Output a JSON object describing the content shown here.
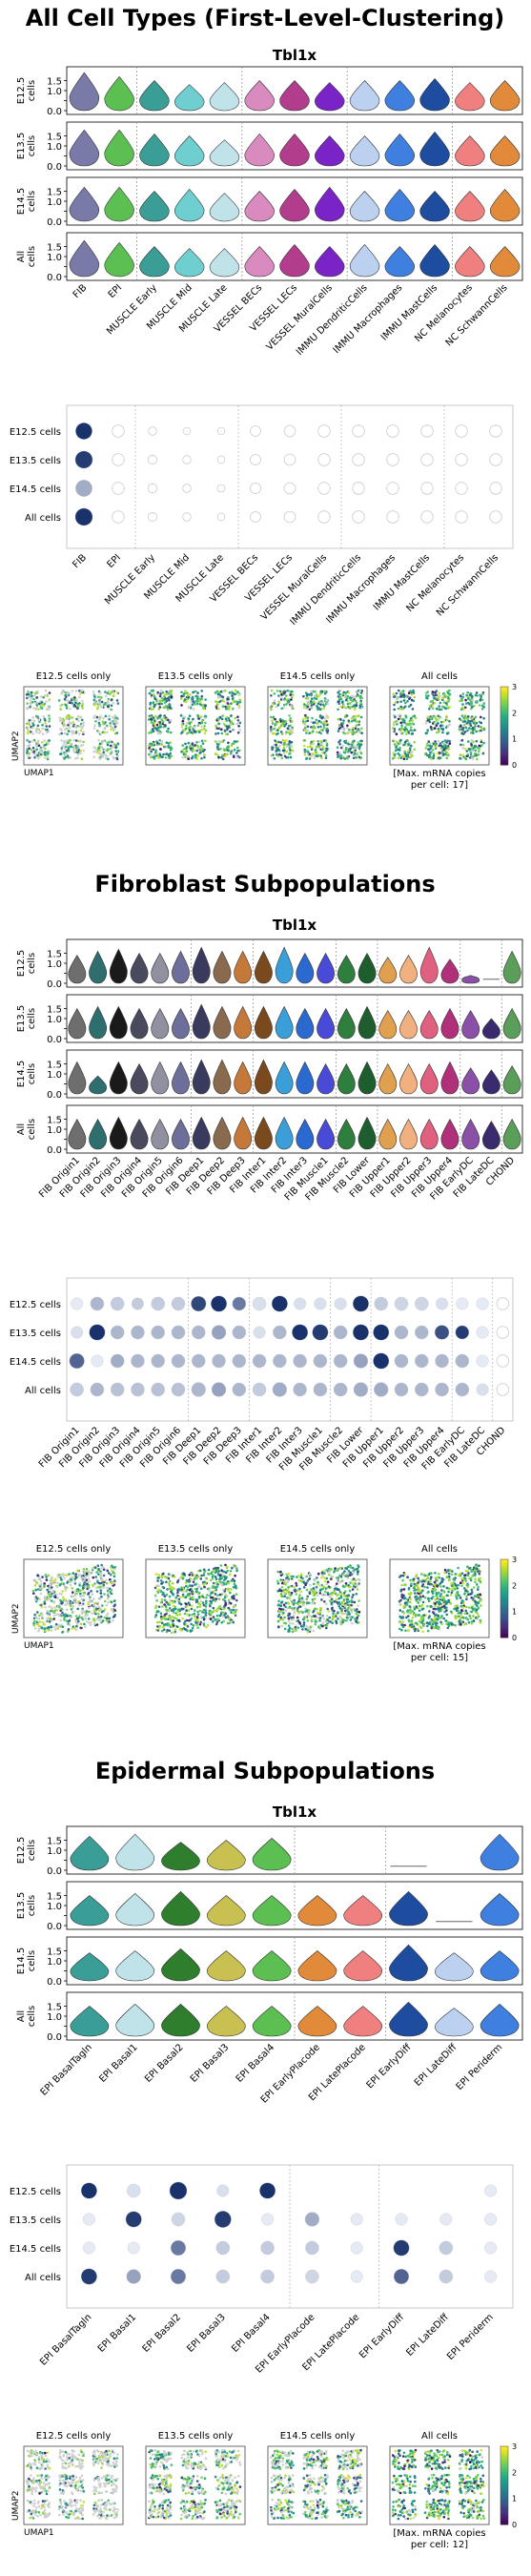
{
  "sections": [
    {
      "title": "All Cell Types (First-Level-Clustering)",
      "gene": "Tbl1x",
      "max_note": "[Max. mRNA copies per cell: 17]",
      "max_note_lines": [
        "[Max. mRNA copies",
        "per cell: 17]"
      ]
    },
    {
      "title": "Fibroblast Subpopulations",
      "gene": "Tbl1x",
      "max_note": "[Max. mRNA copies per cell: 15]",
      "max_note_lines": [
        "[Max. mRNA copies",
        "per cell: 15]"
      ]
    },
    {
      "title": "Epidermal Subpopulations",
      "gene": "Tbl1x",
      "max_note": "[Max. mRNA copies per cell: 12]",
      "max_note_lines": [
        "[Max. mRNA copies",
        "per cell: 12]"
      ]
    }
  ],
  "common": {
    "row_labels_violin": [
      "E12.5\ncells",
      "E13.5\ncells",
      "E14.5\ncells",
      "All\ncells"
    ],
    "row_labels_dot": [
      "E12.5 cells",
      "E13.5 cells",
      "E14.5 cells",
      "All cells"
    ],
    "umap_titles": [
      "E12.5 cells only",
      "E13.5 cells only",
      "E14.5 cells only",
      "All cells"
    ],
    "umap_xlabel": "UMAP1",
    "umap_ylabel": "UMAP2",
    "colorbar_ticks": [
      "0",
      "1",
      "2",
      "3"
    ]
  },
  "chart_data": [
    {
      "type": "violin",
      "section": 0,
      "categories": [
        "FIB",
        "EPI",
        "MUSCLE Early",
        "MUSCLE Mid",
        "MUSCLE Late",
        "VESSEL BECs",
        "VESSEL LECs",
        "VESSEL MuralCells",
        "IMMU DendriticCells",
        "IMMU Macrophages",
        "IMMU MastCells",
        "NC Melanocytes",
        "NC SchwannCells"
      ],
      "colors": [
        "#7a7aa8",
        "#5cbf52",
        "#3a9e96",
        "#6fcfd0",
        "#bfe3e8",
        "#d98bc0",
        "#b23d8c",
        "#7a24c8",
        "#bcd0ef",
        "#3f7fe0",
        "#1e4c9e",
        "#f08080",
        "#e08a3a"
      ],
      "group_dividers_after": [
        1,
        4,
        7,
        10
      ],
      "yticks": [
        "0.0",
        "0.5",
        "1.0",
        "1.5"
      ],
      "ylim": [
        0,
        2
      ],
      "rows": [
        {
          "label": "E12.5 cells",
          "heights": [
            1.9,
            1.7,
            1.5,
            1.3,
            1.4,
            1.5,
            1.5,
            1.4,
            1.5,
            1.5,
            1.6,
            1.4,
            1.5
          ]
        },
        {
          "label": "E13.5 cells",
          "heights": [
            1.8,
            1.8,
            1.6,
            1.5,
            1.3,
            1.6,
            1.6,
            1.5,
            1.5,
            1.6,
            1.7,
            1.5,
            1.5
          ]
        },
        {
          "label": "E14.5 cells",
          "heights": [
            1.7,
            1.7,
            1.5,
            1.6,
            1.4,
            1.5,
            1.6,
            1.7,
            1.5,
            1.6,
            1.5,
            1.5,
            1.6
          ]
        },
        {
          "label": "All cells",
          "heights": [
            1.8,
            1.7,
            1.5,
            1.4,
            1.4,
            1.5,
            1.6,
            1.5,
            1.6,
            1.5,
            1.6,
            1.5,
            1.5
          ]
        }
      ]
    },
    {
      "type": "dot",
      "section": 0,
      "categories": [
        "FIB",
        "EPI",
        "MUSCLE Early",
        "MUSCLE Mid",
        "MUSCLE Late",
        "VESSEL BECs",
        "VESSEL LECs",
        "VESSEL MuralCells",
        "IMMU DendriticCells",
        "IMMU Macrophages",
        "IMMU MastCells",
        "NC Melanocytes",
        "NC SchwannCells"
      ],
      "group_dividers_after": [
        1,
        4,
        7,
        10
      ],
      "rows": [
        {
          "label": "E12.5 cells",
          "sizes": [
            0.9,
            0.6,
            0.35,
            0.3,
            0.3,
            0.5,
            0.55,
            0.6,
            0.6,
            0.6,
            0.6,
            0.6,
            0.6
          ],
          "values": [
            0.95,
            0.02,
            0.02,
            0.02,
            0.02,
            0.02,
            0.02,
            0.02,
            0.02,
            0.02,
            0.02,
            0.02,
            0.02
          ]
        },
        {
          "label": "E13.5 cells",
          "sizes": [
            0.95,
            0.6,
            0.4,
            0.35,
            0.3,
            0.5,
            0.55,
            0.6,
            0.6,
            0.6,
            0.6,
            0.6,
            0.6
          ],
          "values": [
            0.9,
            0.02,
            0.02,
            0.02,
            0.02,
            0.02,
            0.02,
            0.02,
            0.02,
            0.02,
            0.02,
            0.02,
            0.02
          ]
        },
        {
          "label": "E14.5 cells",
          "sizes": [
            0.9,
            0.6,
            0.4,
            0.35,
            0.3,
            0.5,
            0.55,
            0.6,
            0.6,
            0.6,
            0.6,
            0.6,
            0.6
          ],
          "values": [
            0.35,
            0.02,
            0.02,
            0.02,
            0.02,
            0.02,
            0.02,
            0.02,
            0.02,
            0.02,
            0.02,
            0.02,
            0.02
          ]
        },
        {
          "label": "All cells",
          "sizes": [
            0.95,
            0.6,
            0.4,
            0.35,
            0.3,
            0.5,
            0.55,
            0.6,
            0.6,
            0.6,
            0.6,
            0.6,
            0.6
          ],
          "values": [
            0.95,
            0.02,
            0.02,
            0.02,
            0.02,
            0.02,
            0.02,
            0.02,
            0.02,
            0.02,
            0.02,
            0.02,
            0.02
          ]
        }
      ]
    },
    {
      "type": "scatter",
      "section": 0,
      "panels": [
        "E12.5 cells only",
        "E13.5 cells only",
        "E14.5 cells only",
        "All cells"
      ],
      "fraction_colored": [
        0.55,
        0.9,
        0.85,
        0.95
      ],
      "color_range": [
        0,
        3
      ]
    },
    {
      "type": "violin",
      "section": 1,
      "categories": [
        "FIB Origin1",
        "FIB Origin2",
        "FIB Origin3",
        "FIB Origin4",
        "FIB Origin5",
        "FIB Origin6",
        "FIB Deep1",
        "FIB Deep2",
        "FIB Deep3",
        "FIB Inter1",
        "FIB Inter2",
        "FIB Inter3",
        "FIB Muscle1",
        "FIB Muscle2",
        "FIB Lower",
        "FIB Upper1",
        "FIB Upper2",
        "FIB Upper3",
        "FIB Upper4",
        "FIB EarlyDC",
        "FIB LateDC",
        "CHOND"
      ],
      "colors": [
        "#6e6e6e",
        "#2e6e6e",
        "#1a1a1a",
        "#4a4a5e",
        "#9090a0",
        "#6e6e9a",
        "#3a3a5e",
        "#8a6a4e",
        "#c4783a",
        "#7a4a1e",
        "#3a9ed8",
        "#2a6ad0",
        "#4a4ad8",
        "#2e7e3e",
        "#1e5e2e",
        "#e0a050",
        "#f0b080",
        "#e06080",
        "#b0307a",
        "#8a50a8",
        "#3a2a6e",
        "#5a9e5a"
      ],
      "group_dividers_after": [
        5,
        8,
        12,
        14,
        18,
        20
      ],
      "yticks": [
        "0.0",
        "0.5",
        "1.0",
        "1.5"
      ],
      "ylim": [
        0,
        2
      ],
      "rows": [
        {
          "label": "E12.5 cells",
          "heights": [
            1.4,
            1.6,
            1.7,
            1.5,
            1.5,
            1.6,
            1.8,
            1.6,
            1.6,
            1.6,
            1.8,
            1.5,
            1.5,
            1.4,
            1.5,
            1.3,
            1.4,
            1.8,
            1.2,
            0.4,
            0.05,
            1.6
          ]
        },
        {
          "label": "E13.5 cells",
          "heights": [
            1.5,
            1.6,
            1.6,
            1.5,
            1.5,
            1.5,
            1.7,
            1.6,
            1.6,
            1.6,
            1.6,
            1.5,
            1.5,
            1.5,
            1.6,
            1.4,
            1.4,
            1.4,
            1.5,
            1.4,
            1.0,
            1.5
          ]
        },
        {
          "label": "E14.5 cells",
          "heights": [
            1.6,
            0.9,
            1.6,
            1.5,
            1.6,
            1.6,
            1.7,
            1.7,
            1.6,
            1.7,
            1.6,
            1.6,
            1.5,
            1.5,
            1.6,
            1.5,
            1.5,
            1.5,
            1.6,
            1.3,
            1.2,
            1.4
          ]
        },
        {
          "label": "All cells",
          "heights": [
            1.5,
            1.5,
            1.6,
            1.5,
            1.5,
            1.5,
            1.6,
            1.6,
            1.6,
            1.6,
            1.6,
            1.5,
            1.5,
            1.5,
            1.6,
            1.5,
            1.5,
            1.5,
            1.5,
            1.5,
            1.4,
            1.5
          ]
        }
      ]
    },
    {
      "type": "dot",
      "section": 1,
      "categories": [
        "FIB Origin1",
        "FIB Origin2",
        "FIB Origin3",
        "FIB Origin4",
        "FIB Origin5",
        "FIB Origin6",
        "FIB Deep1",
        "FIB Deep2",
        "FIB Deep3",
        "FIB Inter1",
        "FIB Inter2",
        "FIB Inter3",
        "FIB Muscle1",
        "FIB Muscle2",
        "FIB Lower",
        "FIB Upper1",
        "FIB Upper2",
        "FIB Upper3",
        "FIB Upper4",
        "FIB EarlyDC",
        "FIB LateDC",
        "CHOND"
      ],
      "group_dividers_after": [
        5,
        8,
        12,
        14,
        18,
        20
      ],
      "rows": [
        {
          "label": "E12.5 cells",
          "sizes": [
            0.6,
            0.7,
            0.7,
            0.6,
            0.7,
            0.7,
            0.8,
            0.85,
            0.7,
            0.7,
            0.85,
            0.6,
            0.6,
            0.6,
            0.85,
            0.7,
            0.7,
            0.7,
            0.6,
            0.6,
            0.6,
            0.6
          ],
          "values": [
            0.05,
            0.3,
            0.2,
            0.2,
            0.2,
            0.2,
            0.85,
            0.95,
            0.6,
            0.1,
            0.95,
            0.1,
            0.1,
            0.1,
            0.95,
            0.2,
            0.15,
            0.15,
            0.1,
            0.05,
            0.05,
            0.02
          ]
        },
        {
          "label": "E13.5 cells",
          "sizes": [
            0.6,
            0.85,
            0.7,
            0.7,
            0.7,
            0.7,
            0.7,
            0.75,
            0.7,
            0.6,
            0.7,
            0.85,
            0.85,
            0.7,
            0.85,
            0.85,
            0.7,
            0.7,
            0.75,
            0.7,
            0.6,
            0.6
          ],
          "values": [
            0.1,
            0.95,
            0.3,
            0.3,
            0.3,
            0.3,
            0.3,
            0.4,
            0.3,
            0.1,
            0.3,
            0.95,
            0.9,
            0.3,
            0.95,
            0.95,
            0.3,
            0.3,
            0.8,
            0.9,
            0.05,
            0.02
          ]
        },
        {
          "label": "E14.5 cells",
          "sizes": [
            0.8,
            0.6,
            0.7,
            0.7,
            0.7,
            0.7,
            0.7,
            0.7,
            0.7,
            0.7,
            0.7,
            0.7,
            0.7,
            0.7,
            0.75,
            0.85,
            0.7,
            0.7,
            0.7,
            0.7,
            0.6,
            0.6
          ],
          "values": [
            0.7,
            0.05,
            0.35,
            0.3,
            0.3,
            0.3,
            0.3,
            0.3,
            0.3,
            0.3,
            0.3,
            0.3,
            0.3,
            0.3,
            0.4,
            0.95,
            0.3,
            0.3,
            0.3,
            0.3,
            0.05,
            0.02
          ]
        },
        {
          "label": "All cells",
          "sizes": [
            0.7,
            0.7,
            0.7,
            0.7,
            0.7,
            0.7,
            0.75,
            0.75,
            0.7,
            0.7,
            0.75,
            0.7,
            0.7,
            0.7,
            0.75,
            0.75,
            0.7,
            0.7,
            0.7,
            0.7,
            0.6,
            0.6
          ],
          "values": [
            0.2,
            0.3,
            0.25,
            0.25,
            0.25,
            0.25,
            0.3,
            0.4,
            0.3,
            0.2,
            0.35,
            0.3,
            0.3,
            0.3,
            0.35,
            0.35,
            0.3,
            0.3,
            0.3,
            0.3,
            0.1,
            0.02
          ]
        }
      ]
    },
    {
      "type": "scatter",
      "section": 1,
      "panels": [
        "E12.5 cells only",
        "E13.5 cells only",
        "E14.5 cells only",
        "All cells"
      ],
      "fraction_colored": [
        0.6,
        0.95,
        0.8,
        1.0
      ],
      "color_range": [
        0,
        3
      ]
    },
    {
      "type": "violin",
      "section": 2,
      "categories": [
        "EPI BasalTagln",
        "EPI Basal1",
        "EPI Basal2",
        "EPI Basal3",
        "EPI Basal4",
        "EPI EarlyPlacode",
        "EPI LatePlacode",
        "EPI EarlyDiff",
        "EPI LateDiff",
        "EPI Periderm"
      ],
      "colors": [
        "#3a9e96",
        "#bfe3e8",
        "#2e7e2e",
        "#c8c050",
        "#5cbf52",
        "#e08a3a",
        "#f08080",
        "#1e4c9e",
        "#bcd0ef",
        "#3f7fe0"
      ],
      "group_dividers_after": [
        4,
        6
      ],
      "yticks": [
        "0.0",
        "0.5",
        "1.0",
        "1.5"
      ],
      "ylim": [
        0,
        2
      ],
      "rows": [
        {
          "label": "E12.5 cells",
          "heights": [
            1.7,
            1.8,
            1.4,
            1.5,
            1.6,
            0,
            0,
            0.05,
            0,
            1.8
          ]
        },
        {
          "label": "E13.5 cells",
          "heights": [
            1.5,
            1.6,
            1.7,
            1.5,
            1.5,
            1.5,
            1.5,
            1.7,
            0.05,
            1.6
          ]
        },
        {
          "label": "E14.5 cells",
          "heights": [
            1.4,
            1.5,
            1.6,
            1.5,
            1.5,
            1.5,
            1.5,
            1.8,
            1.4,
            1.5
          ]
        },
        {
          "label": "All cells",
          "heights": [
            1.5,
            1.6,
            1.6,
            1.5,
            1.5,
            1.5,
            1.5,
            1.7,
            1.4,
            1.6
          ]
        }
      ]
    },
    {
      "type": "dot",
      "section": 2,
      "categories": [
        "EPI BasalTagln",
        "EPI Basal1",
        "EPI Basal2",
        "EPI Basal3",
        "EPI Basal4",
        "EPI EarlyPlacode",
        "EPI LatePlacode",
        "EPI EarlyDiff",
        "EPI LateDiff",
        "EPI Periderm"
      ],
      "group_dividers_after": [
        4,
        6
      ],
      "rows": [
        {
          "label": "E12.5 cells",
          "sizes": [
            0.85,
            0.7,
            0.95,
            0.6,
            0.85,
            0,
            0,
            0,
            0,
            0.6
          ],
          "values": [
            0.95,
            0.1,
            0.95,
            0.1,
            0.95,
            0,
            0,
            0,
            0,
            0.05
          ]
        },
        {
          "label": "E13.5 cells",
          "sizes": [
            0.6,
            0.85,
            0.7,
            0.9,
            0.6,
            0.75,
            0.6,
            0.6,
            0.6,
            0.6
          ],
          "values": [
            0.05,
            0.9,
            0.15,
            0.9,
            0.05,
            0.35,
            0.05,
            0.05,
            0.05,
            0.05
          ]
        },
        {
          "label": "E14.5 cells",
          "sizes": [
            0.6,
            0.6,
            0.8,
            0.7,
            0.7,
            0.7,
            0.6,
            0.85,
            0.7,
            0.6
          ],
          "values": [
            0.05,
            0.05,
            0.6,
            0.2,
            0.2,
            0.2,
            0.05,
            0.9,
            0.2,
            0.05
          ]
        },
        {
          "label": "All cells",
          "sizes": [
            0.85,
            0.75,
            0.8,
            0.7,
            0.7,
            0.7,
            0.6,
            0.8,
            0.7,
            0.6
          ],
          "values": [
            0.9,
            0.4,
            0.6,
            0.2,
            0.2,
            0.15,
            0.05,
            0.7,
            0.2,
            0.05
          ]
        }
      ]
    },
    {
      "type": "scatter",
      "section": 2,
      "panels": [
        "E12.5 cells only",
        "E13.5 cells only",
        "E14.5 cells only",
        "All cells"
      ],
      "fraction_colored": [
        0.3,
        0.55,
        0.6,
        0.9
      ],
      "color_range": [
        0,
        3
      ]
    }
  ]
}
